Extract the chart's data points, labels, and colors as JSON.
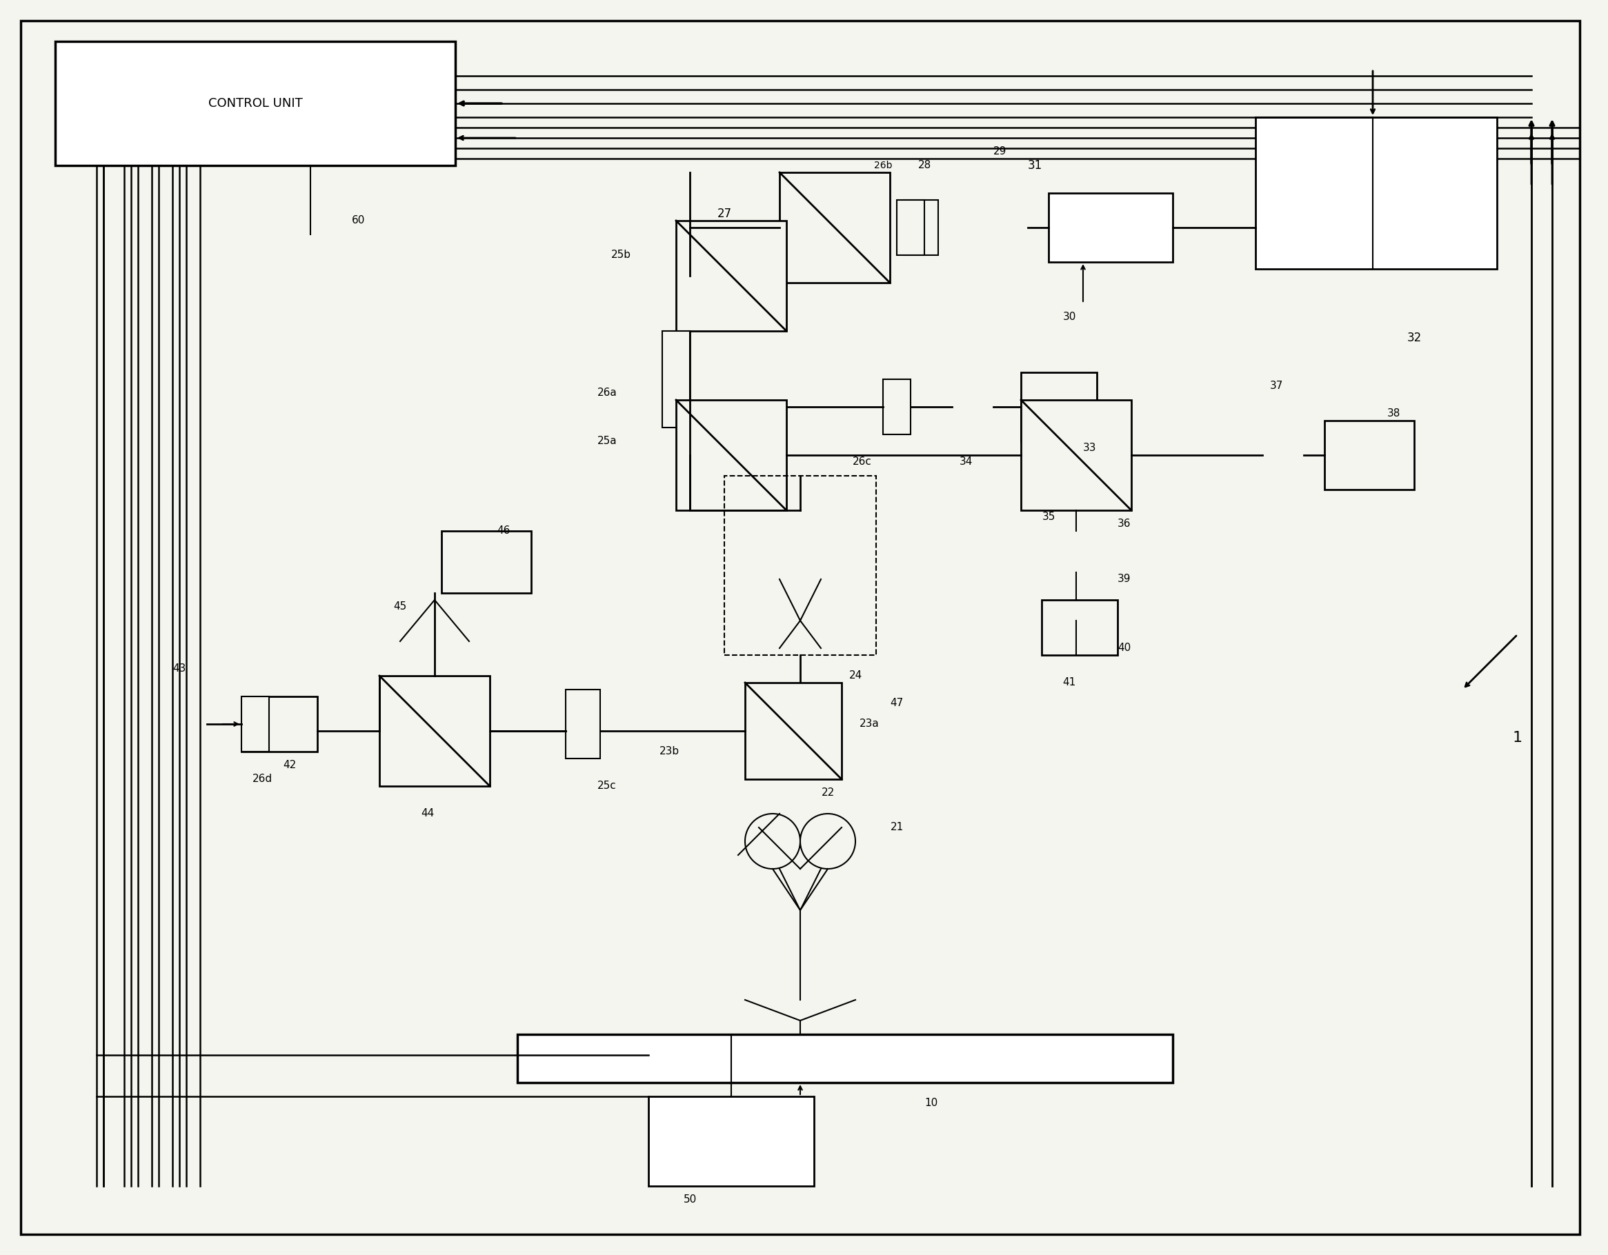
{
  "bg_color": "#f5f5f0",
  "line_color": "#000000",
  "fig_width": 23.31,
  "fig_height": 18.2,
  "title": "",
  "labels": {
    "CONTROL_UNIT": "CONTROL UNIT",
    "1": "1",
    "10": "10",
    "21": "21",
    "22": "22",
    "23a": "23a",
    "23b": "23b",
    "24": "24",
    "25a": "25a",
    "25b": "25b",
    "25c": "25c",
    "26a": "26a",
    "26b": "26b",
    "26c": "26c",
    "26d": "26d",
    "27": "27",
    "28": "28",
    "29": "29",
    "30": "30",
    "31": "31",
    "32": "32",
    "33": "33",
    "34": "34",
    "35": "35",
    "36": "36",
    "37": "37",
    "38": "38",
    "39": "39",
    "40": "40",
    "41": "41",
    "42": "42",
    "43": "43",
    "44": "44",
    "45": "45",
    "46": "46",
    "47": "47",
    "50": "50",
    "60": "60"
  }
}
